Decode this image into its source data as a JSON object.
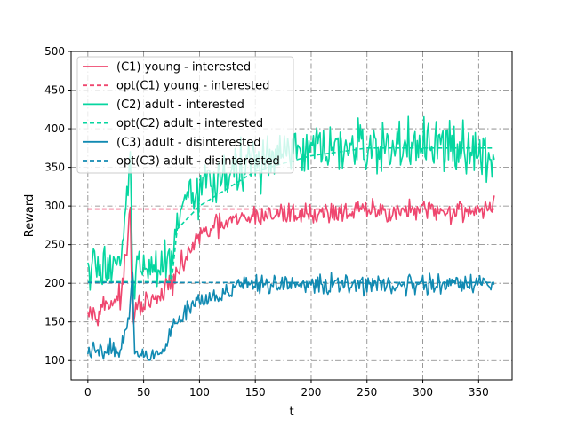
{
  "chart_data": {
    "type": "line",
    "xlabel": "t",
    "ylabel": "Reward",
    "xlim": [
      -15,
      380
    ],
    "ylim": [
      75,
      500
    ],
    "xticks": [
      0,
      50,
      100,
      150,
      200,
      250,
      300,
      350
    ],
    "yticks": [
      100,
      150,
      200,
      250,
      300,
      350,
      400,
      450,
      500
    ],
    "grid": true,
    "grid_style": "dashdot",
    "legend_position": "upper-left",
    "series": [
      {
        "name": "(C1) young - interested",
        "color": "#ef476f",
        "style": "solid",
        "keypoints": [
          [
            0,
            175
          ],
          [
            5,
            160
          ],
          [
            10,
            168
          ],
          [
            20,
            175
          ],
          [
            30,
            185
          ],
          [
            35,
            240
          ],
          [
            38,
            300
          ],
          [
            40,
            150
          ],
          [
            45,
            170
          ],
          [
            55,
            175
          ],
          [
            65,
            180
          ],
          [
            70,
            195
          ],
          [
            75,
            200
          ],
          [
            80,
            210
          ],
          [
            90,
            240
          ],
          [
            100,
            260
          ],
          [
            110,
            270
          ],
          [
            120,
            275
          ],
          [
            130,
            280
          ],
          [
            140,
            283
          ],
          [
            150,
            287
          ],
          [
            175,
            290
          ],
          [
            200,
            290
          ],
          [
            225,
            293
          ],
          [
            250,
            293
          ],
          [
            275,
            293
          ],
          [
            300,
            293
          ],
          [
            325,
            293
          ],
          [
            364,
            297
          ]
        ],
        "noise": 12
      },
      {
        "name": "opt(C1) young - interested",
        "color": "#ef476f",
        "style": "dashed",
        "keypoints": [
          [
            0,
            296
          ],
          [
            364,
            296
          ]
        ],
        "noise": 0
      },
      {
        "name": "(C2) adult - interested",
        "color": "#06d6a0",
        "style": "solid",
        "keypoints": [
          [
            0,
            215
          ],
          [
            10,
            220
          ],
          [
            20,
            225
          ],
          [
            30,
            230
          ],
          [
            35,
            300
          ],
          [
            38,
            360
          ],
          [
            40,
            215
          ],
          [
            50,
            215
          ],
          [
            60,
            215
          ],
          [
            70,
            220
          ],
          [
            75,
            240
          ],
          [
            80,
            270
          ],
          [
            90,
            300
          ],
          [
            100,
            320
          ],
          [
            110,
            335
          ],
          [
            120,
            340
          ],
          [
            130,
            345
          ],
          [
            140,
            350
          ],
          [
            150,
            355
          ],
          [
            160,
            360
          ],
          [
            175,
            365
          ],
          [
            200,
            370
          ],
          [
            225,
            372
          ],
          [
            250,
            375
          ],
          [
            275,
            375
          ],
          [
            300,
            375
          ],
          [
            325,
            375
          ],
          [
            364,
            375
          ]
        ],
        "noise": 28
      },
      {
        "name": "opt(C2) adult - interested",
        "color": "#06d6a0",
        "style": "dashed",
        "keypoints": [
          [
            0,
            202
          ],
          [
            75,
            202
          ],
          [
            80,
            270
          ],
          [
            100,
            300
          ],
          [
            150,
            345
          ],
          [
            200,
            365
          ],
          [
            250,
            375
          ],
          [
            300,
            375
          ],
          [
            364,
            375
          ]
        ],
        "noise": 0
      },
      {
        "name": "(C3) adult - disinterested",
        "color": "#118ab2",
        "style": "solid",
        "keypoints": [
          [
            0,
            113
          ],
          [
            10,
            110
          ],
          [
            20,
            115
          ],
          [
            30,
            115
          ],
          [
            36,
            150
          ],
          [
            40,
            210
          ],
          [
            42,
            110
          ],
          [
            50,
            110
          ],
          [
            60,
            110
          ],
          [
            70,
            115
          ],
          [
            75,
            140
          ],
          [
            80,
            150
          ],
          [
            90,
            170
          ],
          [
            100,
            180
          ],
          [
            110,
            185
          ],
          [
            120,
            188
          ],
          [
            130,
            192
          ],
          [
            140,
            195
          ],
          [
            150,
            197
          ],
          [
            175,
            198
          ],
          [
            200,
            198
          ],
          [
            225,
            198
          ],
          [
            250,
            198
          ],
          [
            275,
            198
          ],
          [
            300,
            198
          ],
          [
            325,
            198
          ],
          [
            364,
            200
          ]
        ],
        "noise": 10
      },
      {
        "name": "opt(C3) adult - disinterested",
        "color": "#118ab2",
        "style": "dashed",
        "keypoints": [
          [
            0,
            201
          ],
          [
            364,
            201
          ]
        ],
        "noise": 0
      }
    ]
  }
}
